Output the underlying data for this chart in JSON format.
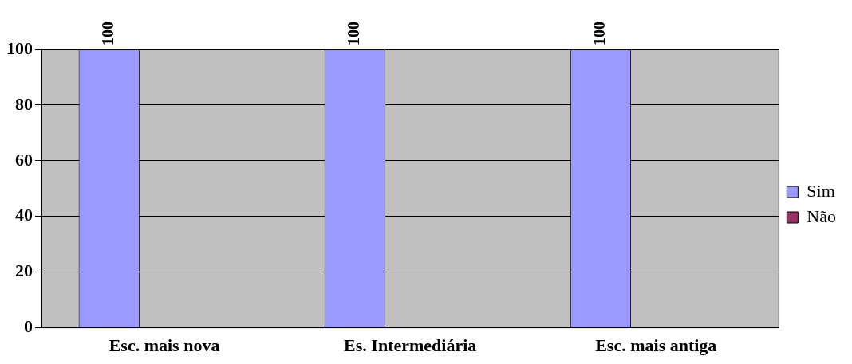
{
  "chart_data": {
    "type": "bar",
    "categories": [
      "Esc. mais nova",
      "Es. Intermediária",
      "Esc. mais antiga"
    ],
    "series": [
      {
        "name": "Sim",
        "color": "#9999ff",
        "values": [
          100,
          100,
          100
        ],
        "value_labels": [
          "100",
          "100",
          "100"
        ]
      },
      {
        "name": "Não",
        "color": "#993366",
        "values": [
          0,
          0,
          0
        ]
      }
    ],
    "ylim": [
      0,
      100
    ],
    "yticks": [
      0,
      20,
      40,
      60,
      80,
      100
    ],
    "grid": "y",
    "legend": "right"
  }
}
